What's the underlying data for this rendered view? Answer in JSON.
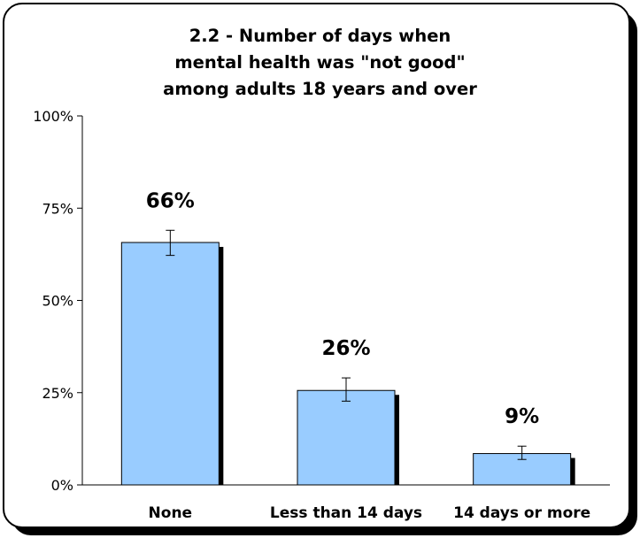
{
  "chart_data": {
    "type": "bar",
    "title_lines": [
      "2.2 - Number of days when",
      "mental health was \"not good\"",
      "among adults 18 years and over"
    ],
    "categories": [
      "None",
      "Less than 14 days",
      "14 days or more"
    ],
    "values": [
      65.7,
      25.6,
      8.5
    ],
    "error_low": [
      62.2,
      22.7,
      6.9
    ],
    "error_high": [
      69.0,
      29.0,
      10.5
    ],
    "data_labels": [
      "66%",
      "26%",
      "9%"
    ],
    "y_ticks": [
      0,
      25,
      50,
      75,
      100
    ],
    "y_tick_labels": [
      "0%",
      "25%",
      "50%",
      "75%",
      "100%"
    ],
    "ylim": [
      0,
      100
    ],
    "xlabel": "",
    "ylabel": "",
    "grid": false,
    "legend": "none",
    "colors": {
      "bar": "#99ccff",
      "bar_shadow": "#000000",
      "bar_border": "#000000"
    }
  }
}
